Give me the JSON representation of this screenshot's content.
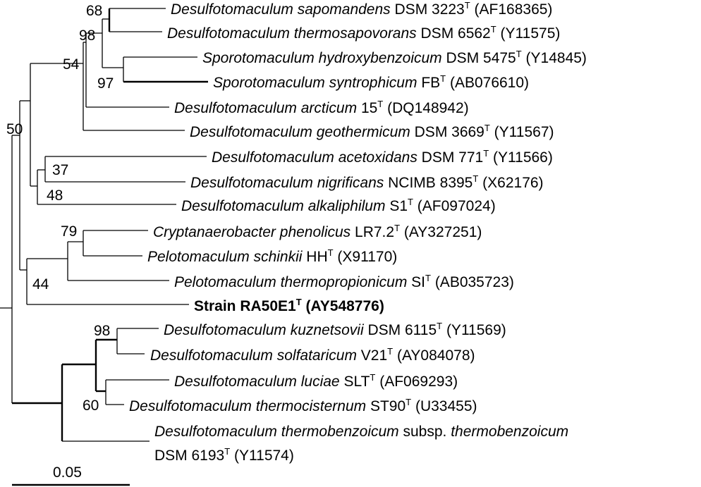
{
  "tree": {
    "taxa": [
      {
        "genus_species": "Desulfotomaculum sapomandens",
        "strain": "DSM 3223",
        "accession": "(AF168365)"
      },
      {
        "genus_species": "Desulfotomaculum thermosapovorans",
        "strain": "DSM 6562",
        "accession": "(Y11575)"
      },
      {
        "genus_species": "Sporotomaculum hydroxybenzoicum",
        "strain": "DSM 5475",
        "accession": "(Y14845)"
      },
      {
        "genus_species": "Sporotomaculum syntrophicum",
        "strain": "FB",
        "accession": "(AB076610)"
      },
      {
        "genus_species": "Desulfotomaculum arcticum",
        "strain": "15",
        "accession": "(DQ148942)"
      },
      {
        "genus_species": "Desulfotomaculum geothermicum",
        "strain": "DSM 3669",
        "accession": "(Y11567)"
      },
      {
        "genus_species": "Desulfotomaculum acetoxidans",
        "strain": "DSM 771",
        "accession": "(Y11566)"
      },
      {
        "genus_species": "Desulfotomaculum nigrificans",
        "strain": "NCIMB 8395",
        "accession": "(X62176)"
      },
      {
        "genus_species": "Desulfotomaculum alkaliphilum",
        "strain": "S1",
        "accession": "(AF097024)"
      },
      {
        "genus_species": "Cryptanaerobacter phenolicus",
        "strain": "LR7.2",
        "accession": "(AY327251)"
      },
      {
        "genus_species": "Pelotomaculum schinkii",
        "strain": "HH",
        "accession": "(X91170)"
      },
      {
        "genus_species": "Pelotomaculum thermopropionicum",
        "strain": "SI",
        "accession": "(AB035723)"
      },
      {
        "genus_species": "Strain RA50E1",
        "strain": "",
        "accession": "(AY548776)",
        "bold": true
      },
      {
        "genus_species": "Desulfotomaculum kuznetsovii",
        "strain": "DSM 6115",
        "accession": "(Y11569)"
      },
      {
        "genus_species": "Desulfotomaculum solfataricum",
        "strain": "V21",
        "accession": "(AY084078)"
      },
      {
        "genus_species": "Desulfotomaculum luciae",
        "strain": "SLT",
        "accession": "(AF069293)"
      },
      {
        "genus_species": "Desulfotomaculum thermocisternum",
        "strain": "ST90",
        "accession": "(U33455)"
      },
      {
        "genus_species": "Desulfotomaculum thermobenzoicum",
        "subsp_word": "subsp.",
        "subsp_name": "thermobenzoicum",
        "strain": "DSM 6193",
        "accession": "(Y11574)"
      }
    ],
    "type_strain_mark": "T",
    "bootstrap": [
      "68",
      "98",
      "97",
      "54",
      "50",
      "37",
      "48",
      "79",
      "44",
      "98",
      "60"
    ],
    "scale_bar_label": "0.05"
  }
}
